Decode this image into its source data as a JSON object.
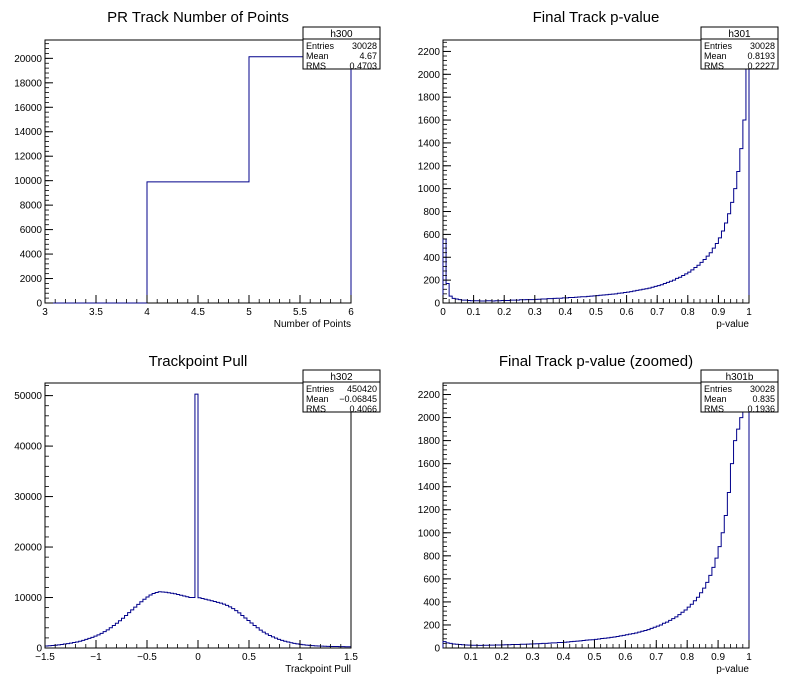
{
  "chart_data": [
    {
      "id": "h300",
      "type": "histogram",
      "title": "PR Track Number of Points",
      "xlabel": "Number of Points",
      "ylabel": "",
      "xlim": [
        3,
        6
      ],
      "ylim": [
        0,
        21500
      ],
      "xticks": [
        3,
        3.5,
        4,
        4.5,
        5,
        5.5,
        6
      ],
      "xtick_labels": [
        "3",
        "3.5",
        "4",
        "4.5",
        "5",
        "5.5",
        "6"
      ],
      "yticks": [
        0,
        2000,
        4000,
        6000,
        8000,
        10000,
        12000,
        14000,
        16000,
        18000,
        20000
      ],
      "ytick_labels": [
        "0",
        "2000",
        "4000",
        "6000",
        "8000",
        "10000",
        "12000",
        "14000",
        "16000",
        "18000",
        "20000"
      ],
      "bin_edges": [
        3,
        4,
        5,
        6
      ],
      "counts": [
        0,
        9900,
        20130
      ],
      "stats": {
        "name": "h300",
        "entries": "30028",
        "mean": "4.67",
        "rms": "0.4703"
      },
      "stats_labels": {
        "entries": "Entries",
        "mean": "Mean",
        "rms": "RMS"
      },
      "line_color": "#00008b"
    },
    {
      "id": "h301",
      "type": "histogram",
      "title": "Final Track p-value",
      "xlabel": "p-value",
      "ylabel": "",
      "xlim": [
        0,
        1
      ],
      "ylim": [
        0,
        2300
      ],
      "xticks": [
        0,
        0.1,
        0.2,
        0.3,
        0.4,
        0.5,
        0.6,
        0.7,
        0.8,
        0.9,
        1
      ],
      "xtick_labels": [
        "0",
        "0.1",
        "0.2",
        "0.3",
        "0.4",
        "0.5",
        "0.6",
        "0.7",
        "0.8",
        "0.9",
        "1"
      ],
      "yticks": [
        0,
        200,
        400,
        600,
        800,
        1000,
        1200,
        1400,
        1600,
        1800,
        2000,
        2200
      ],
      "ytick_labels": [
        "0",
        "200",
        "400",
        "600",
        "800",
        "1000",
        "1200",
        "1400",
        "1600",
        "1800",
        "2000",
        "2200"
      ],
      "bin_edges_range": [
        0,
        1,
        100
      ],
      "counts": [
        560,
        170,
        60,
        40,
        35,
        30,
        25,
        25,
        22,
        20,
        20,
        20,
        18,
        18,
        20,
        20,
        18,
        20,
        20,
        22,
        22,
        22,
        25,
        25,
        25,
        28,
        28,
        30,
        30,
        30,
        32,
        33,
        35,
        35,
        38,
        38,
        40,
        42,
        42,
        45,
        45,
        48,
        48,
        50,
        52,
        55,
        55,
        58,
        60,
        62,
        65,
        68,
        70,
        72,
        75,
        78,
        80,
        85,
        88,
        92,
        95,
        100,
        105,
        110,
        115,
        120,
        125,
        130,
        138,
        145,
        152,
        160,
        170,
        180,
        190,
        200,
        215,
        225,
        240,
        255,
        270,
        290,
        310,
        330,
        355,
        380,
        410,
        440,
        480,
        520,
        570,
        630,
        700,
        780,
        880,
        1000,
        1150,
        1350,
        1600,
        2300
      ],
      "stats": {
        "name": "h301",
        "entries": "30028",
        "mean": "0.8193",
        "rms": "0.2227"
      },
      "stats_labels": {
        "entries": "Entries",
        "mean": "Mean",
        "rms": "RMS"
      },
      "line_color": "#00008b"
    },
    {
      "id": "h302",
      "type": "histogram",
      "title": "Trackpoint Pull",
      "xlabel": "Trackpoint Pull",
      "ylabel": "",
      "xlim": [
        -1.5,
        1.5
      ],
      "ylim": [
        0,
        52500
      ],
      "xticks": [
        -1.5,
        -1,
        -0.5,
        0,
        0.5,
        1,
        1.5
      ],
      "xtick_labels": [
        "−1.5",
        "−1",
        "−0.5",
        "0",
        "0.5",
        "1",
        "1.5"
      ],
      "yticks": [
        0,
        10000,
        20000,
        30000,
        40000,
        50000
      ],
      "ytick_labels": [
        "0",
        "10000",
        "20000",
        "30000",
        "40000",
        "50000"
      ],
      "bin_edges_range": [
        -1.5,
        1.5,
        100
      ],
      "counts": [
        400,
        450,
        500,
        550,
        620,
        700,
        780,
        870,
        970,
        1080,
        1200,
        1350,
        1500,
        1700,
        1900,
        2100,
        2350,
        2600,
        2900,
        3250,
        3600,
        4000,
        4450,
        4900,
        5400,
        5900,
        6450,
        7000,
        7550,
        8100,
        8650,
        9150,
        9650,
        10100,
        10500,
        10800,
        11000,
        11150,
        11100,
        11050,
        10950,
        10850,
        10750,
        10600,
        10450,
        10300,
        10150,
        10000,
        10000,
        50300,
        9950,
        9800,
        9650,
        9500,
        9350,
        9200,
        9050,
        8900,
        8700,
        8450,
        8150,
        7800,
        7400,
        6950,
        6450,
        5950,
        5450,
        4950,
        4450,
        4000,
        3550,
        3150,
        2800,
        2480,
        2200,
        1950,
        1720,
        1520,
        1340,
        1180,
        1040,
        920,
        820,
        730,
        650,
        580,
        520,
        470,
        430,
        400,
        370,
        345,
        325,
        310,
        300,
        290,
        280,
        270,
        260,
        250
      ],
      "stats": {
        "name": "h302",
        "entries": "450420",
        "mean": "−0.06845",
        "rms": "0.4066"
      },
      "stats_labels": {
        "entries": "Entries",
        "mean": "Mean",
        "rms": "RMS"
      },
      "line_color": "#00008b"
    },
    {
      "id": "h301b",
      "type": "histogram",
      "title": "Final Track p-value (zoomed)",
      "xlabel": "p-value",
      "ylabel": "",
      "xlim": [
        0.01,
        1
      ],
      "ylim": [
        0,
        2300
      ],
      "xticks": [
        0.1,
        0.2,
        0.3,
        0.4,
        0.5,
        0.6,
        0.7,
        0.8,
        0.9,
        1
      ],
      "xtick_labels": [
        "0.1",
        "0.2",
        "0.3",
        "0.4",
        "0.5",
        "0.6",
        "0.7",
        "0.8",
        "0.9",
        "1"
      ],
      "yticks": [
        0,
        200,
        400,
        600,
        800,
        1000,
        1200,
        1400,
        1600,
        1800,
        2000,
        2200
      ],
      "ytick_labels": [
        "0",
        "200",
        "400",
        "600",
        "800",
        "1000",
        "1200",
        "1400",
        "1600",
        "1800",
        "2000",
        "2200"
      ],
      "bin_edges_range": [
        0.01,
        1,
        99
      ],
      "counts": [
        55,
        45,
        40,
        35,
        32,
        30,
        28,
        26,
        25,
        24,
        24,
        23,
        23,
        24,
        24,
        25,
        25,
        26,
        26,
        27,
        28,
        28,
        30,
        30,
        30,
        32,
        32,
        34,
        35,
        36,
        37,
        38,
        40,
        40,
        42,
        44,
        45,
        48,
        48,
        50,
        52,
        55,
        57,
        60,
        62,
        65,
        68,
        70,
        72,
        75,
        78,
        82,
        85,
        88,
        92,
        96,
        100,
        105,
        110,
        115,
        120,
        125,
        130,
        138,
        145,
        152,
        160,
        170,
        180,
        190,
        200,
        215,
        225,
        240,
        255,
        270,
        290,
        310,
        330,
        355,
        380,
        410,
        440,
        480,
        520,
        570,
        630,
        700,
        780,
        880,
        1000,
        1150,
        1350,
        1600,
        1800,
        1900,
        2000,
        2150,
        2300
      ],
      "stats": {
        "name": "h301b",
        "entries": "30028",
        "mean": "0.835",
        "rms": "0.1936"
      },
      "stats_labels": {
        "entries": "Entries",
        "mean": "Mean",
        "rms": "RMS"
      },
      "line_color": "#00008b"
    }
  ]
}
